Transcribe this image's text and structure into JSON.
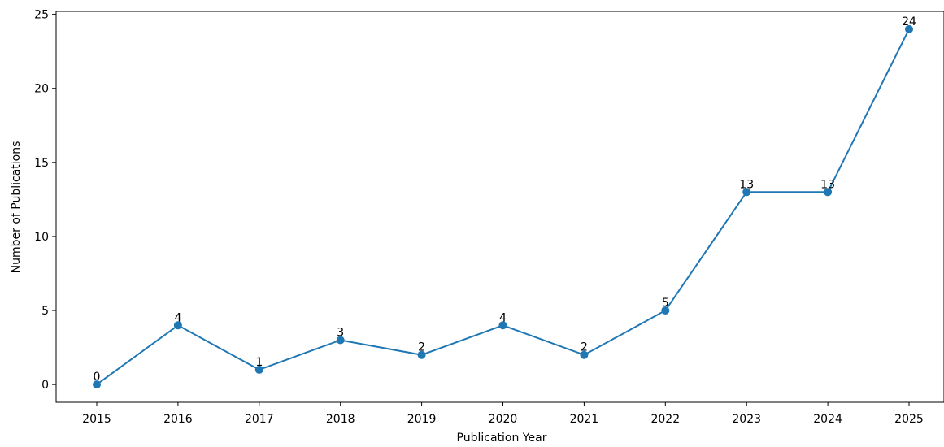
{
  "chart_data": {
    "type": "line",
    "title": "",
    "xlabel": "Publication Year",
    "ylabel": "Number of Publications",
    "x": [
      "2015",
      "2016",
      "2017",
      "2018",
      "2019",
      "2020",
      "2021",
      "2022",
      "2023",
      "2024",
      "2025"
    ],
    "series": [
      {
        "values": [
          0,
          4,
          1,
          3,
          2,
          4,
          2,
          5,
          13,
          13,
          24
        ],
        "color": "#1f77b4",
        "marker": "circle"
      }
    ],
    "data_labels": [
      "0",
      "4",
      "1",
      "3",
      "2",
      "4",
      "2",
      "5",
      "13",
      "13",
      "24"
    ],
    "ylim": [
      -1.2,
      25.2
    ],
    "yticks": [
      0,
      5,
      10,
      15,
      20,
      25
    ],
    "ytick_labels": [
      "0",
      "5",
      "10",
      "15",
      "20",
      "25"
    ],
    "grid": false,
    "legend": "none",
    "spines": [
      "left",
      "bottom",
      "top",
      "right"
    ]
  }
}
